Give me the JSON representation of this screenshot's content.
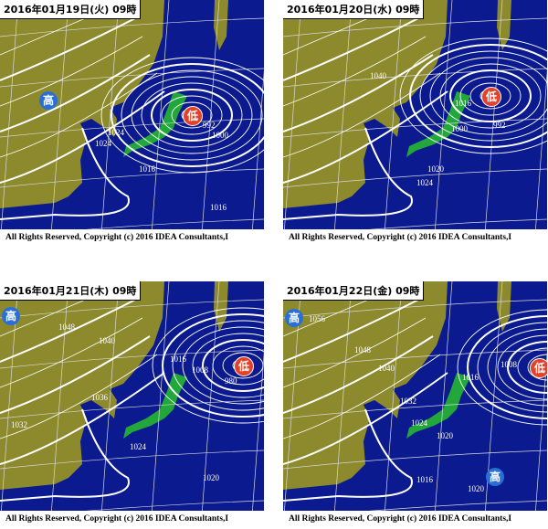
{
  "colors": {
    "sea": "#0b1a8f",
    "land": "#8c8a2c",
    "japan": "#22a83a",
    "isobar": "#ffffff",
    "high": "#2a6fd6",
    "low": "#e2412a"
  },
  "copyright": "All Rights Reserved, Copyright (c) 2016 IDEA Consultants,I",
  "panels": [
    {
      "title": "2016年01月19日(火) 09時",
      "centers": [
        {
          "type": "high",
          "label": "高"
        },
        {
          "type": "low",
          "label": "低"
        }
      ],
      "isobars": [
        "1024",
        "1024",
        "1016",
        "1000",
        "992",
        "1016"
      ]
    },
    {
      "title": "2016年01月20日(水) 09時",
      "centers": [
        {
          "type": "low",
          "label": "低"
        }
      ],
      "isobars": [
        "1040",
        "1016",
        "1000",
        "992",
        "1020",
        "1024"
      ]
    },
    {
      "title": "2016年01月21日(木) 09時",
      "centers": [
        {
          "type": "high",
          "label": "高"
        },
        {
          "type": "low",
          "label": "低"
        }
      ],
      "isobars": [
        "1048",
        "1040",
        "1032",
        "1024",
        "1016",
        "1008",
        "980",
        "1020",
        "1036"
      ]
    },
    {
      "title": "2016年01月22日(金) 09時",
      "centers": [
        {
          "type": "high",
          "label": "高"
        },
        {
          "type": "high",
          "label": "高"
        },
        {
          "type": "low",
          "label": "低"
        }
      ],
      "isobars": [
        "1056",
        "1048",
        "1040",
        "1032",
        "1024",
        "1020",
        "1016",
        "1008",
        "1016",
        "1020"
      ]
    }
  ]
}
